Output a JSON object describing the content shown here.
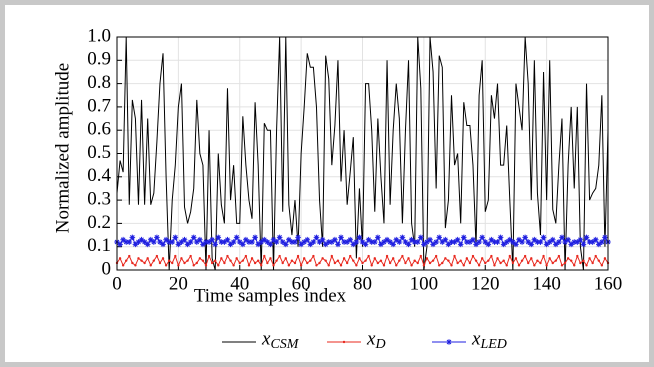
{
  "chart_data": {
    "type": "line",
    "xlabel": "Time samples index",
    "ylabel": "Normalized amplitude",
    "xlim": [
      0,
      160
    ],
    "xticks": [
      0,
      20,
      40,
      60,
      80,
      100,
      120,
      140,
      160
    ],
    "ylim": [
      0,
      1
    ],
    "yticks": [
      0,
      0.1,
      0.2,
      0.3,
      0.4,
      0.5,
      0.6,
      0.7,
      0.8,
      0.9,
      {
        "value": 1,
        "label": "1.0"
      }
    ],
    "grid": true,
    "legend": "bottom",
    "x": [
      0,
      1,
      2,
      3,
      4,
      5,
      6,
      7,
      8,
      9,
      10,
      11,
      12,
      13,
      14,
      15,
      16,
      17,
      18,
      19,
      20,
      21,
      22,
      23,
      24,
      25,
      26,
      27,
      28,
      29,
      30,
      31,
      32,
      33,
      34,
      35,
      36,
      37,
      38,
      39,
      40,
      41,
      42,
      43,
      44,
      45,
      46,
      47,
      48,
      49,
      50,
      51,
      52,
      53,
      54,
      55,
      56,
      57,
      58,
      59,
      60,
      61,
      62,
      63,
      64,
      65,
      66,
      67,
      68,
      69,
      70,
      71,
      72,
      73,
      74,
      75,
      76,
      77,
      78,
      79,
      80,
      81,
      82,
      83,
      84,
      85,
      86,
      87,
      88,
      89,
      90,
      91,
      92,
      93,
      94,
      95,
      96,
      97,
      98,
      99,
      100,
      101,
      102,
      103,
      104,
      105,
      106,
      107,
      108,
      109,
      110,
      111,
      112,
      113,
      114,
      115,
      116,
      117,
      118,
      119,
      120,
      121,
      122,
      123,
      124,
      125,
      126,
      127,
      128,
      129,
      130,
      131,
      132,
      133,
      134,
      135,
      136,
      137,
      138,
      139,
      140,
      141,
      142,
      143,
      144,
      145,
      146,
      147,
      148,
      149,
      150,
      151,
      152,
      153,
      154,
      155,
      156,
      157,
      158,
      159,
      160
    ],
    "series": [
      {
        "name": "x_CSM",
        "color": "#000000",
        "marker": "none",
        "values": [
          0.33,
          0.47,
          0.42,
          1.0,
          0.28,
          0.73,
          0.65,
          0.28,
          0.73,
          0.28,
          0.65,
          0.28,
          0.33,
          0.55,
          0.8,
          0.93,
          0.4,
          0.0,
          0.3,
          0.45,
          0.7,
          0.8,
          0.27,
          0.2,
          0.25,
          0.35,
          0.73,
          0.5,
          0.45,
          0.0,
          0.6,
          0.05,
          0.0,
          0.5,
          0.28,
          0.2,
          0.78,
          0.3,
          0.45,
          0.2,
          0.2,
          0.66,
          0.45,
          0.3,
          0.22,
          0.72,
          0.45,
          0.0,
          0.63,
          0.6,
          0.6,
          0.0,
          0.6,
          1.0,
          0.25,
          1.0,
          0.28,
          0.15,
          0.3,
          0.1,
          0.5,
          0.7,
          0.93,
          0.87,
          0.87,
          0.7,
          0.3,
          0.1,
          0.92,
          0.82,
          0.45,
          0.62,
          0.9,
          0.38,
          0.6,
          0.28,
          0.42,
          0.57,
          0.05,
          0.35,
          0.1,
          0.8,
          0.8,
          0.6,
          0.25,
          0.65,
          0.4,
          0.2,
          0.9,
          0.28,
          0.6,
          0.8,
          0.65,
          0.2,
          0.6,
          0.9,
          0.2,
          0.1,
          1.0,
          0.78,
          0.0,
          0.1,
          1.0,
          0.85,
          0.35,
          0.92,
          0.87,
          0.18,
          0.3,
          0.75,
          0.45,
          0.5,
          0.2,
          0.72,
          0.62,
          0.62,
          0.45,
          0.1,
          0.75,
          0.9,
          0.25,
          0.3,
          0.75,
          0.65,
          0.8,
          0.45,
          0.45,
          0.62,
          0.3,
          0.0,
          0.8,
          0.7,
          0.6,
          1.0,
          0.8,
          0.3,
          0.9,
          0.33,
          0.15,
          0.85,
          0.3,
          0.9,
          0.26,
          0.2,
          0.45,
          0.65,
          0.0,
          0.45,
          0.7,
          0.35,
          0.7,
          0.1,
          0.0,
          0.8,
          0.3,
          0.33,
          0.35,
          0.45,
          0.75,
          0.1,
          0.6
        ]
      },
      {
        "name": "x_D",
        "color": "#e8281e",
        "marker": "dot",
        "values": [
          0.03,
          0.05,
          0.02,
          0.04,
          0.06,
          0.03,
          0.02,
          0.05,
          0.04,
          0.03,
          0.05,
          0.02,
          0.04,
          0.06,
          0.03,
          0.05,
          0.02,
          0.04,
          0.03,
          0.06,
          0.02,
          0.05,
          0.03,
          0.04,
          0.06,
          0.02,
          0.03,
          0.05,
          0.04,
          0.02,
          0.06,
          0.03,
          0.04,
          0.02,
          0.05,
          0.03,
          0.06,
          0.04,
          0.02,
          0.05,
          0.03,
          0.04,
          0.06,
          0.02,
          0.05,
          0.03,
          0.04,
          0.02,
          0.06,
          0.03,
          0.05,
          0.02,
          0.04,
          0.06,
          0.03,
          0.05,
          0.02,
          0.04,
          0.03,
          0.06,
          0.02,
          0.05,
          0.03,
          0.04,
          0.06,
          0.02,
          0.03,
          0.05,
          0.04,
          0.02,
          0.06,
          0.03,
          0.04,
          0.02,
          0.05,
          0.03,
          0.06,
          0.04,
          0.02,
          0.05,
          0.03,
          0.04,
          0.06,
          0.02,
          0.05,
          0.03,
          0.04,
          0.02,
          0.06,
          0.03,
          0.05,
          0.02,
          0.04,
          0.06,
          0.03,
          0.05,
          0.02,
          0.04,
          0.03,
          0.06,
          0.02,
          0.05,
          0.03,
          0.04,
          0.06,
          0.02,
          0.03,
          0.05,
          0.04,
          0.02,
          0.06,
          0.03,
          0.04,
          0.02,
          0.05,
          0.03,
          0.06,
          0.04,
          0.02,
          0.05,
          0.03,
          0.04,
          0.06,
          0.02,
          0.05,
          0.03,
          0.04,
          0.02,
          0.06,
          0.03,
          0.05,
          0.02,
          0.04,
          0.06,
          0.03,
          0.05,
          0.02,
          0.04,
          0.03,
          0.06,
          0.02,
          0.05,
          0.03,
          0.04,
          0.06,
          0.02,
          0.03,
          0.05,
          0.04,
          0.02,
          0.06,
          0.03,
          0.04,
          0.02,
          0.05,
          0.03,
          0.06,
          0.04,
          0.02,
          0.05,
          0.03
        ]
      },
      {
        "name": "x_LED",
        "color": "#1f1fe0",
        "marker": "star",
        "values": [
          0.12,
          0.11,
          0.13,
          0.12,
          0.12,
          0.14,
          0.11,
          0.12,
          0.13,
          0.12,
          0.11,
          0.13,
          0.12,
          0.14,
          0.12,
          0.11,
          0.13,
          0.12,
          0.12,
          0.14,
          0.11,
          0.12,
          0.13,
          0.11,
          0.12,
          0.14,
          0.12,
          0.13,
          0.11,
          0.12,
          0.12,
          0.13,
          0.11,
          0.14,
          0.12,
          0.12,
          0.13,
          0.11,
          0.12,
          0.14,
          0.12,
          0.11,
          0.13,
          0.12,
          0.12,
          0.14,
          0.11,
          0.12,
          0.13,
          0.12,
          0.11,
          0.13,
          0.12,
          0.14,
          0.12,
          0.11,
          0.13,
          0.12,
          0.12,
          0.14,
          0.11,
          0.12,
          0.13,
          0.11,
          0.12,
          0.14,
          0.12,
          0.13,
          0.11,
          0.12,
          0.12,
          0.13,
          0.11,
          0.14,
          0.12,
          0.12,
          0.13,
          0.11,
          0.12,
          0.14,
          0.12,
          0.11,
          0.13,
          0.12,
          0.12,
          0.14,
          0.11,
          0.12,
          0.13,
          0.12,
          0.11,
          0.13,
          0.12,
          0.14,
          0.12,
          0.11,
          0.13,
          0.12,
          0.12,
          0.14,
          0.11,
          0.12,
          0.13,
          0.11,
          0.12,
          0.14,
          0.12,
          0.13,
          0.11,
          0.12,
          0.12,
          0.13,
          0.11,
          0.14,
          0.12,
          0.12,
          0.13,
          0.11,
          0.12,
          0.14,
          0.12,
          0.11,
          0.13,
          0.12,
          0.12,
          0.14,
          0.11,
          0.12,
          0.13,
          0.12,
          0.11,
          0.13,
          0.12,
          0.14,
          0.12,
          0.11,
          0.13,
          0.12,
          0.12,
          0.14,
          0.11,
          0.12,
          0.13,
          0.11,
          0.12,
          0.14,
          0.12,
          0.13,
          0.11,
          0.12,
          0.12,
          0.13,
          0.11,
          0.14,
          0.12,
          0.12,
          0.13,
          0.11,
          0.12,
          0.14,
          0.12
        ]
      }
    ]
  }
}
